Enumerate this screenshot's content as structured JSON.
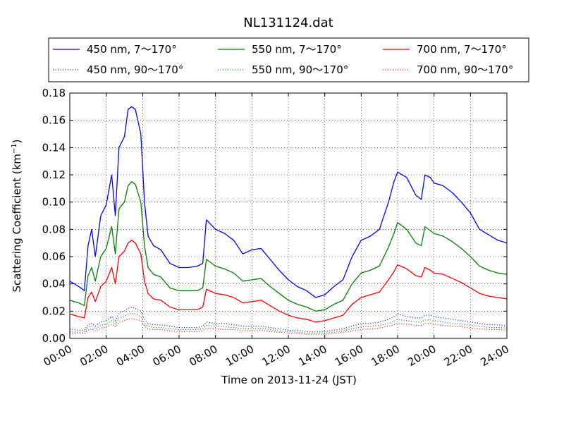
{
  "chart_data": {
    "type": "line",
    "title": "NL131124.dat",
    "xlabel": "Time on 2013-11-24 (JST)",
    "ylabel": "Scattering Coefficient (km",
    "ylabel_sup": "−1",
    "ylabel_tail": ")",
    "xlim": [
      0,
      24
    ],
    "ylim": [
      0,
      0.18
    ],
    "grid": true,
    "legend_placement": "top",
    "x_tick_labels": [
      "00:00",
      "02:00",
      "04:00",
      "06:00",
      "08:00",
      "10:00",
      "12:00",
      "14:00",
      "16:00",
      "18:00",
      "20:00",
      "22:00",
      "24:00"
    ],
    "y_tick_labels": [
      "0.00",
      "0.02",
      "0.04",
      "0.06",
      "0.08",
      "0.10",
      "0.12",
      "0.14",
      "0.16",
      "0.18"
    ],
    "x_hours": [
      0,
      0.5,
      0.8,
      1.0,
      1.2,
      1.4,
      1.7,
      2.0,
      2.3,
      2.5,
      2.7,
      3.0,
      3.2,
      3.4,
      3.6,
      3.9,
      4.1,
      4.3,
      4.6,
      5.0,
      5.5,
      6.0,
      6.5,
      7.0,
      7.3,
      7.5,
      8.0,
      8.5,
      9.0,
      9.5,
      10.0,
      10.5,
      11.0,
      11.5,
      12.0,
      12.5,
      13.0,
      13.5,
      14.0,
      14.5,
      15.0,
      15.5,
      16.0,
      16.5,
      17.0,
      17.5,
      17.8,
      18.0,
      18.5,
      19.0,
      19.3,
      19.5,
      19.8,
      20.0,
      20.5,
      21.0,
      21.5,
      22.0,
      22.5,
      23.0,
      23.5,
      24.0
    ],
    "series": [
      {
        "name": "450 nm, 7～170°",
        "color": "#0000ff",
        "style": "solid",
        "values": [
          0.042,
          0.038,
          0.035,
          0.068,
          0.08,
          0.06,
          0.09,
          0.098,
          0.12,
          0.09,
          0.14,
          0.148,
          0.168,
          0.17,
          0.168,
          0.15,
          0.1,
          0.075,
          0.068,
          0.065,
          0.055,
          0.052,
          0.052,
          0.053,
          0.055,
          0.087,
          0.08,
          0.077,
          0.072,
          0.062,
          0.065,
          0.066,
          0.058,
          0.05,
          0.043,
          0.038,
          0.035,
          0.03,
          0.032,
          0.038,
          0.043,
          0.06,
          0.072,
          0.075,
          0.08,
          0.1,
          0.115,
          0.122,
          0.118,
          0.105,
          0.102,
          0.12,
          0.118,
          0.114,
          0.112,
          0.107,
          0.1,
          0.092,
          0.08,
          0.076,
          0.072,
          0.07
        ]
      },
      {
        "name": "550 nm, 7～170°",
        "color": "#008000",
        "style": "solid",
        "values": [
          0.028,
          0.026,
          0.024,
          0.046,
          0.052,
          0.042,
          0.06,
          0.066,
          0.082,
          0.062,
          0.095,
          0.1,
          0.112,
          0.115,
          0.113,
          0.1,
          0.068,
          0.052,
          0.047,
          0.045,
          0.037,
          0.035,
          0.035,
          0.035,
          0.037,
          0.058,
          0.053,
          0.051,
          0.048,
          0.042,
          0.043,
          0.044,
          0.038,
          0.033,
          0.028,
          0.025,
          0.023,
          0.02,
          0.021,
          0.025,
          0.028,
          0.04,
          0.048,
          0.05,
          0.053,
          0.067,
          0.077,
          0.085,
          0.08,
          0.07,
          0.068,
          0.082,
          0.079,
          0.077,
          0.075,
          0.071,
          0.066,
          0.06,
          0.053,
          0.05,
          0.048,
          0.047
        ]
      },
      {
        "name": "700 nm, 7～170°",
        "color": "#ff0000",
        "style": "solid",
        "values": [
          0.018,
          0.016,
          0.015,
          0.03,
          0.034,
          0.027,
          0.038,
          0.042,
          0.052,
          0.04,
          0.06,
          0.064,
          0.07,
          0.072,
          0.07,
          0.062,
          0.042,
          0.033,
          0.029,
          0.028,
          0.023,
          0.021,
          0.021,
          0.021,
          0.023,
          0.036,
          0.033,
          0.032,
          0.03,
          0.026,
          0.027,
          0.028,
          0.024,
          0.02,
          0.017,
          0.015,
          0.014,
          0.012,
          0.013,
          0.015,
          0.017,
          0.025,
          0.03,
          0.032,
          0.034,
          0.043,
          0.049,
          0.054,
          0.051,
          0.046,
          0.045,
          0.052,
          0.05,
          0.048,
          0.047,
          0.044,
          0.041,
          0.037,
          0.033,
          0.031,
          0.03,
          0.029
        ]
      },
      {
        "name": "450 nm, 90～170°",
        "color": "#0000ff",
        "style": "dotted",
        "values": [
          0.007,
          0.006,
          0.006,
          0.01,
          0.011,
          0.009,
          0.012,
          0.013,
          0.016,
          0.013,
          0.019,
          0.02,
          0.022,
          0.023,
          0.022,
          0.02,
          0.014,
          0.011,
          0.01,
          0.01,
          0.009,
          0.008,
          0.008,
          0.008,
          0.009,
          0.012,
          0.011,
          0.011,
          0.01,
          0.009,
          0.009,
          0.009,
          0.008,
          0.007,
          0.006,
          0.006,
          0.005,
          0.005,
          0.005,
          0.006,
          0.007,
          0.009,
          0.011,
          0.011,
          0.012,
          0.014,
          0.016,
          0.018,
          0.016,
          0.015,
          0.015,
          0.017,
          0.017,
          0.016,
          0.015,
          0.014,
          0.013,
          0.012,
          0.011,
          0.01,
          0.01,
          0.009
        ]
      },
      {
        "name": "550 nm, 90～170°",
        "color": "#008000",
        "style": "dotted",
        "values": [
          0.005,
          0.0045,
          0.0045,
          0.008,
          0.009,
          0.007,
          0.0095,
          0.0105,
          0.013,
          0.0105,
          0.015,
          0.016,
          0.018,
          0.0185,
          0.018,
          0.016,
          0.011,
          0.009,
          0.008,
          0.008,
          0.007,
          0.0065,
          0.0065,
          0.0065,
          0.007,
          0.0095,
          0.009,
          0.0085,
          0.008,
          0.007,
          0.007,
          0.0075,
          0.0065,
          0.0055,
          0.005,
          0.0045,
          0.004,
          0.004,
          0.004,
          0.0045,
          0.0055,
          0.007,
          0.0085,
          0.009,
          0.0095,
          0.011,
          0.0125,
          0.014,
          0.013,
          0.012,
          0.012,
          0.0135,
          0.0135,
          0.013,
          0.012,
          0.011,
          0.0105,
          0.0095,
          0.009,
          0.008,
          0.008,
          0.0075
        ]
      },
      {
        "name": "700 nm, 90～170°",
        "color": "#ff0000",
        "style": "dotted",
        "values": [
          0.004,
          0.0035,
          0.0035,
          0.006,
          0.007,
          0.0055,
          0.0075,
          0.0085,
          0.0105,
          0.0085,
          0.012,
          0.013,
          0.014,
          0.0145,
          0.014,
          0.013,
          0.009,
          0.007,
          0.0065,
          0.0065,
          0.0055,
          0.005,
          0.005,
          0.005,
          0.0055,
          0.0075,
          0.007,
          0.0065,
          0.0065,
          0.0055,
          0.0055,
          0.006,
          0.005,
          0.0045,
          0.004,
          0.0035,
          0.003,
          0.003,
          0.003,
          0.0035,
          0.0045,
          0.0055,
          0.0065,
          0.007,
          0.0075,
          0.009,
          0.01,
          0.011,
          0.0105,
          0.0095,
          0.0095,
          0.011,
          0.011,
          0.0105,
          0.0095,
          0.009,
          0.0085,
          0.0075,
          0.007,
          0.0065,
          0.0065,
          0.006
        ]
      }
    ]
  }
}
